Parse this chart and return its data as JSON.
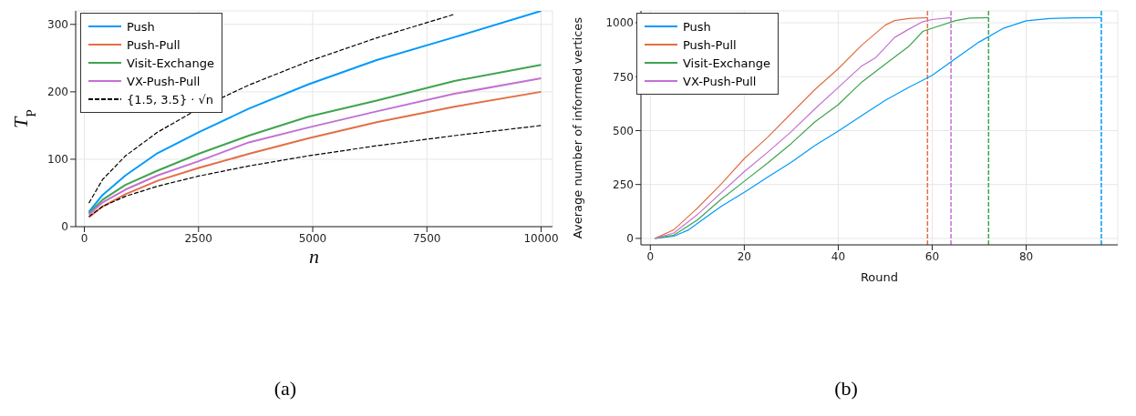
{
  "chart_data": [
    {
      "type": "line",
      "title": "(a)",
      "xlabel": "n",
      "ylabel": "T$_{P}$",
      "xlim": [
        -190,
        10250
      ],
      "ylim": [
        0,
        320
      ],
      "xticks": [
        0,
        2500,
        5000,
        7500,
        10000
      ],
      "yticks": [
        0,
        100,
        200,
        300
      ],
      "grid": true,
      "legend": "top left",
      "line_style": "solid",
      "marker": "none",
      "x": [
        100,
        400,
        900,
        1600,
        2500,
        3600,
        4900,
        6400,
        8100,
        10000
      ],
      "series": [
        {
          "name": "Push",
          "color": "#009af9",
          "values": [
            22,
            47,
            76,
            109,
            140,
            175,
            211,
            247,
            281,
            320
          ]
        },
        {
          "name": "Push-Pull",
          "color": "#e26f46",
          "values": [
            14,
            30,
            48,
            68,
            87,
            108,
            131,
            155,
            178,
            200
          ]
        },
        {
          "name": "Visit-Exchange",
          "color": "#3ea44e",
          "values": [
            20,
            40,
            62,
            83,
            108,
            135,
            163,
            187,
            216,
            240
          ]
        },
        {
          "name": "VX-Push-Pull",
          "color": "#c271d2",
          "values": [
            18,
            36,
            55,
            76,
            97,
            125,
            147,
            171,
            197,
            220
          ]
        },
        {
          "name": "{1.5, 3.5} · √n",
          "color": "#000000",
          "line_style": "dashed",
          "x": [
            100,
            400,
            900,
            1600,
            2500,
            3600,
            4900,
            6400,
            8100
          ],
          "values": [
            35,
            70,
            105,
            140,
            175,
            210,
            245,
            280,
            315
          ]
        },
        {
          "color": "#000000",
          "line_style": "dashed",
          "values": [
            15,
            30,
            45,
            60,
            75,
            90,
            105,
            120,
            135,
            150
          ]
        }
      ]
    },
    {
      "type": "line",
      "title": "(b)",
      "xlabel": "Round",
      "ylabel": "Average number of informed vertices",
      "xlim": [
        -2,
        99.5
      ],
      "ylim": [
        -30,
        1055
      ],
      "xticks": [
        0,
        20,
        40,
        60,
        80
      ],
      "yticks": [
        0,
        250,
        500,
        750,
        1000
      ],
      "grid": true,
      "legend": "top left",
      "line_style": "solid",
      "marker": "none",
      "series": [
        {
          "name": "Push",
          "color": "#009af9",
          "x": [
            1,
            5,
            8,
            10,
            15,
            20,
            25,
            30,
            35,
            40,
            45,
            50,
            55,
            60,
            65,
            70,
            75,
            80,
            85,
            90,
            96
          ],
          "values": [
            0,
            10,
            38,
            69,
            147,
            214,
            285,
            353,
            430,
            498,
            570,
            640,
            700,
            756,
            834,
            911,
            973,
            1009,
            1020,
            1023,
            1024
          ]
        },
        {
          "name": "Push-Pull",
          "color": "#e26f46",
          "x": [
            1,
            5,
            10,
            15,
            20,
            25,
            30,
            35,
            40,
            45,
            50,
            52,
            55,
            59
          ],
          "values": [
            0,
            40,
            140,
            250,
            370,
            470,
            580,
            690,
            787,
            896,
            989,
            1010,
            1020,
            1024
          ]
        },
        {
          "name": "Visit-Exchange",
          "color": "#3ea44e",
          "x": [
            1,
            5,
            10,
            15,
            20,
            25,
            30,
            35,
            40,
            45,
            50,
            55,
            58,
            60,
            65,
            68,
            72
          ],
          "values": [
            0,
            15,
            85,
            180,
            265,
            350,
            440,
            540,
            620,
            725,
            808,
            890,
            960,
            975,
            1010,
            1022,
            1024
          ]
        },
        {
          "name": "VX-Push-Pull",
          "color": "#c271d2",
          "x": [
            1,
            5,
            10,
            15,
            20,
            25,
            30,
            35,
            40,
            45,
            48,
            52,
            55,
            58,
            60,
            64
          ],
          "values": [
            0,
            25,
            110,
            210,
            310,
            400,
            495,
            600,
            700,
            800,
            839,
            932,
            970,
            1005,
            1015,
            1024
          ]
        }
      ],
      "ref_lines": [
        {
          "axis": "x",
          "value": 59,
          "color": "#e26f46",
          "line_style": "dashed"
        },
        {
          "axis": "x",
          "value": 64,
          "color": "#c271d2",
          "line_style": "dashed"
        },
        {
          "axis": "x",
          "value": 72,
          "color": "#3ea44e",
          "line_style": "dashed"
        },
        {
          "axis": "x",
          "value": 96,
          "color": "#009af9",
          "line_style": "dashed"
        }
      ]
    }
  ]
}
